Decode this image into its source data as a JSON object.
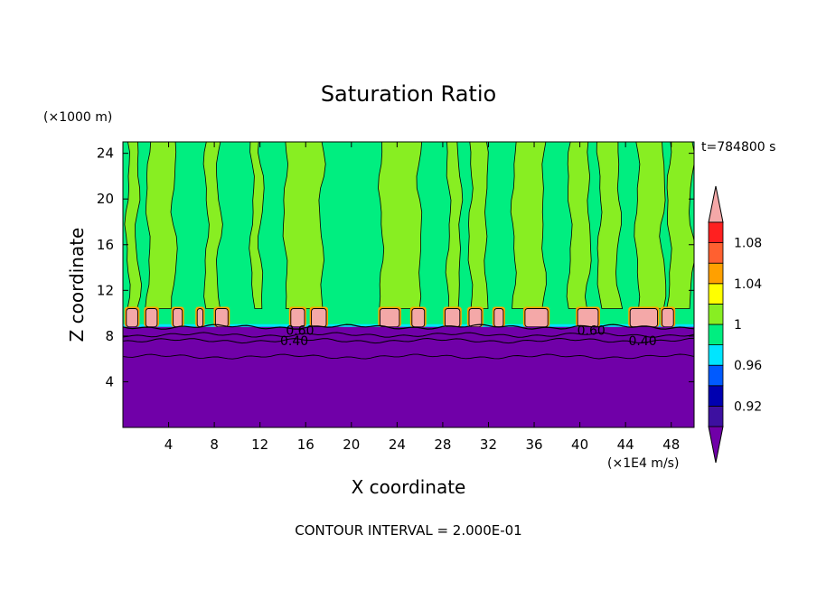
{
  "chart_data": {
    "type": "heatmap",
    "title": "Saturation Ratio",
    "xlabel": "X coordinate",
    "ylabel": "Z coordinate",
    "x_unit": "(×1E4 m/s)",
    "y_unit": "(×1000 m)",
    "time_label": "t=784800 s",
    "footer": "CONTOUR INTERVAL = 2.000E-01",
    "xlim": [
      0,
      50
    ],
    "ylim": [
      0,
      25
    ],
    "x_ticks": [
      "4",
      "8",
      "12",
      "16",
      "20",
      "24",
      "28",
      "32",
      "36",
      "40",
      "44",
      "48"
    ],
    "y_ticks": [
      "4",
      "8",
      "12",
      "16",
      "20",
      "24"
    ],
    "x_tick_values": [
      4,
      8,
      12,
      16,
      20,
      24,
      28,
      32,
      36,
      40,
      44,
      48
    ],
    "y_tick_values": [
      4,
      8,
      12,
      16,
      20,
      24
    ],
    "contour_labels": [
      {
        "text": "0.60",
        "x": 15.5,
        "y": 8.5
      },
      {
        "text": "0.40",
        "x": 15.0,
        "y": 7.6
      },
      {
        "text": "0.60",
        "x": 41.0,
        "y": 8.5
      },
      {
        "text": "0.40",
        "x": 45.5,
        "y": 7.6
      }
    ],
    "colorbar": {
      "levels": [
        0.9,
        0.92,
        0.94,
        0.96,
        0.98,
        1.0,
        1.02,
        1.04,
        1.06,
        1.08,
        1.1
      ],
      "tick_labels": [
        {
          "value": 0.92,
          "label": "0.92"
        },
        {
          "value": 0.96,
          "label": "0.96"
        },
        {
          "value": 1.0,
          "label": "1"
        },
        {
          "value": 1.04,
          "label": "1.04"
        },
        {
          "value": 1.08,
          "label": "1.08"
        }
      ],
      "colors": [
        "#3d10a0",
        "#0000b0",
        "#005aff",
        "#00e5ff",
        "#00ee80",
        "#88ee22",
        "#ffff00",
        "#ffa000",
        "#ff6030",
        "#ff2020"
      ],
      "under_color": "#7000a8",
      "over_color": "#f4a8a8"
    },
    "regions": {
      "low_value_top_z": 8.8,
      "low_value_color": "#7000a8",
      "cloud_layer_z": [
        8.8,
        10.4
      ],
      "cloud_color": "#f4a8a8",
      "background_upper_color": "#00ee80",
      "plume_color": "#88ee22",
      "plumes_x": [
        [
          0.4,
          1.3
        ],
        [
          2.2,
          4.5
        ],
        [
          7.3,
          8.4
        ],
        [
          11.3,
          12.1
        ],
        [
          14.2,
          17.4
        ],
        [
          22.6,
          26.0
        ],
        [
          28.5,
          29.5
        ],
        [
          30.4,
          31.8
        ],
        [
          34.2,
          36.8
        ],
        [
          39.1,
          40.8
        ],
        [
          41.7,
          43.4
        ],
        [
          45.0,
          47.3
        ],
        [
          47.8,
          49.8
        ]
      ],
      "cloud_blobs_x": [
        [
          0.3,
          1.3
        ],
        [
          2.0,
          3.0
        ],
        [
          4.4,
          5.2
        ],
        [
          6.5,
          7.0
        ],
        [
          8.1,
          9.2
        ],
        [
          14.7,
          15.9
        ],
        [
          16.5,
          17.8
        ],
        [
          22.5,
          24.2
        ],
        [
          25.3,
          26.4
        ],
        [
          28.2,
          29.5
        ],
        [
          30.3,
          31.4
        ],
        [
          32.5,
          33.3
        ],
        [
          35.2,
          37.2
        ],
        [
          39.8,
          41.6
        ],
        [
          44.4,
          46.8
        ],
        [
          47.2,
          48.2
        ]
      ]
    }
  }
}
